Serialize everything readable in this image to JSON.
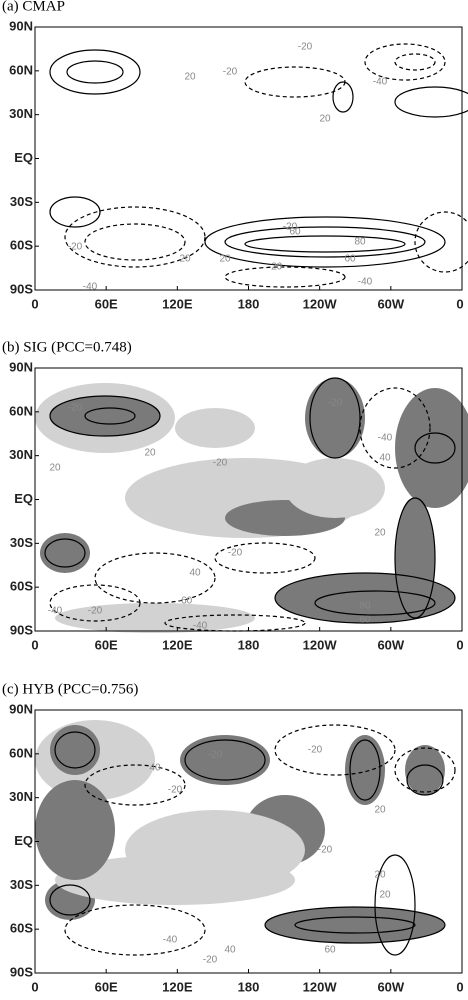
{
  "panels": [
    {
      "title": "(a) CMAP",
      "yticks": [
        "90N",
        "60N",
        "30N",
        "EQ",
        "30S",
        "60S",
        "90S"
      ],
      "xticks": [
        "0",
        "60E",
        "120E",
        "180",
        "120W",
        "60W",
        "0"
      ],
      "contour_labels": [
        "-20",
        "20",
        "-20",
        "-40",
        "20",
        "20",
        "-20",
        "-20",
        "60",
        "80",
        "60",
        "-20",
        "20",
        "-40",
        "-40"
      ]
    },
    {
      "title": "(b) SIG (PCC=0.748)",
      "yticks": [
        "90N",
        "60N",
        "30N",
        "EQ",
        "30S",
        "60S",
        "90S"
      ],
      "xticks": [
        "0",
        "60E",
        "120E",
        "180",
        "120W",
        "60W",
        "0"
      ],
      "contour_labels": [
        "-20",
        "20",
        "20",
        "-20",
        "-20",
        "40",
        "-40",
        "20",
        "-20",
        "40",
        "-60",
        "-20",
        "-40",
        "-40",
        "80",
        "60"
      ]
    },
    {
      "title": "(c) HYB (PCC=0.756)",
      "yticks": [
        "90N",
        "60N",
        "30N",
        "EQ",
        "30S",
        "60S",
        "90S"
      ],
      "xticks": [
        "0",
        "60E",
        "120E",
        "180",
        "120W",
        "60W",
        "0"
      ],
      "contour_labels": [
        "40",
        "-20",
        "-20",
        "-20",
        "20",
        "-20",
        "20",
        "40",
        "60",
        "-40",
        "-20",
        "20"
      ]
    }
  ]
}
